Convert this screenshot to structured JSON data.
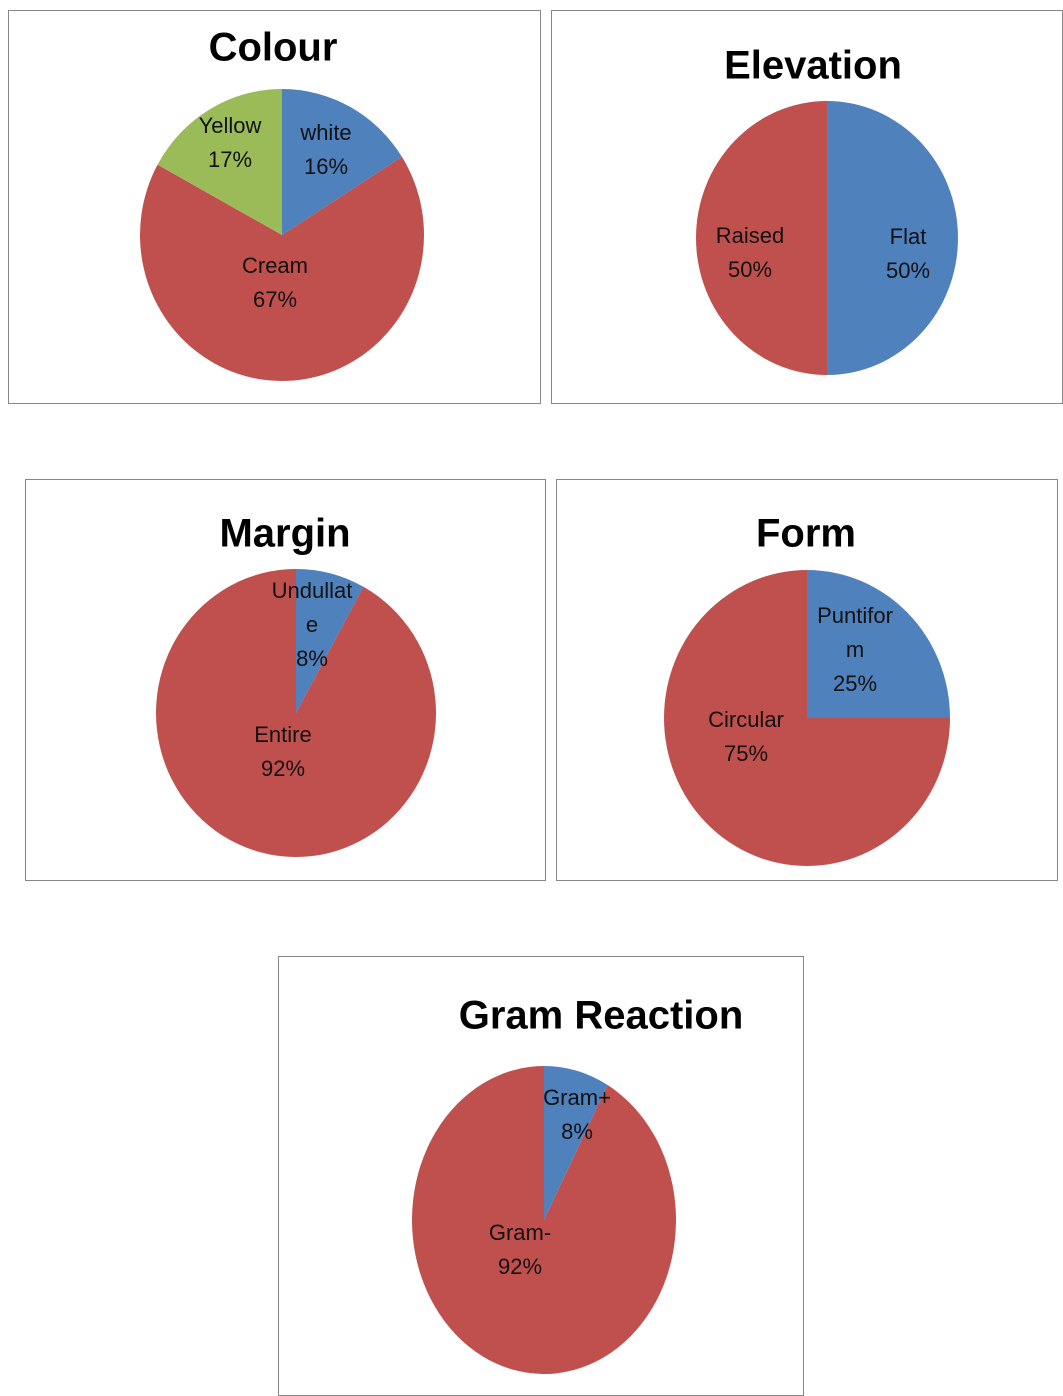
{
  "chart_data": [
    {
      "type": "pie",
      "title": "Colour",
      "categories": [
        "white",
        "Cream",
        "Yellow"
      ],
      "values": [
        16,
        67,
        17
      ],
      "value_labels": [
        "16%",
        "67%",
        "17%"
      ],
      "colors": [
        "#4f81bd",
        "#c0504d",
        "#9bbb59"
      ]
    },
    {
      "type": "pie",
      "title": "Elevation",
      "categories": [
        "Flat",
        "Raised"
      ],
      "values": [
        50,
        50
      ],
      "value_labels": [
        "50%",
        "50%"
      ],
      "colors": [
        "#4f81bd",
        "#c0504d"
      ]
    },
    {
      "type": "pie",
      "title": "Margin",
      "categories": [
        "Undullate",
        "Entire"
      ],
      "values": [
        8,
        92
      ],
      "value_labels": [
        "8%",
        "92%"
      ],
      "colors": [
        "#4f81bd",
        "#c0504d"
      ]
    },
    {
      "type": "pie",
      "title": "Form",
      "categories": [
        "Puntiform",
        "Circular"
      ],
      "values": [
        25,
        75
      ],
      "value_labels": [
        "25%",
        "75%"
      ],
      "colors": [
        "#4f81bd",
        "#c0504d"
      ]
    },
    {
      "type": "pie",
      "title": "Gram Reaction",
      "categories": [
        "Gram+",
        "Gram-"
      ],
      "values": [
        8,
        92
      ],
      "value_labels": [
        "8%",
        "92%"
      ],
      "colors": [
        "#4f81bd",
        "#c0504d"
      ]
    }
  ]
}
